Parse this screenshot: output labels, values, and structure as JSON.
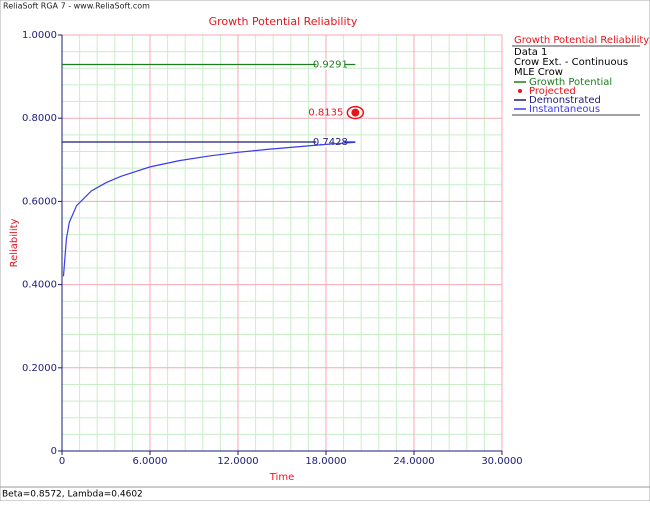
{
  "app_title": "ReliaSoft RGA 7 - www.ReliaSoft.com",
  "footer": "Beta=0.8572, Lambda=0.4602",
  "chart_data": {
    "type": "line",
    "title": "Growth Potential Reliability",
    "x_label": "Time",
    "y_label": "Reliability",
    "legend_title": "Growth Potential Reliability",
    "legend_lines": [
      "Data 1",
      "Crow Ext. - Continuous",
      "MLE Crow"
    ],
    "legend": "right",
    "grid": true,
    "xlim": [
      0,
      30
    ],
    "ylim": [
      0,
      1
    ],
    "xticks": [
      0,
      {
        "value": 6,
        "label": "6.0000"
      },
      {
        "value": 12,
        "label": "12.0000"
      },
      {
        "value": 18,
        "label": "18.0000"
      },
      {
        "value": 24,
        "label": "24.0000"
      },
      {
        "value": 30,
        "label": "30.0000"
      }
    ],
    "yticks": [
      {
        "value": 0,
        "label": "0"
      },
      {
        "value": 0.2,
        "label": "0.2000"
      },
      {
        "value": 0.4,
        "label": "0.4000"
      },
      {
        "value": 0.6,
        "label": "0.6000"
      },
      {
        "value": 0.8,
        "label": "0.8000"
      },
      {
        "value": 1,
        "label": "1.0000"
      }
    ],
    "series": [
      {
        "name": "Growth Potential",
        "color": "#1e7d1e",
        "x": [
          0,
          20
        ],
        "values": [
          0.9291,
          0.9291
        ],
        "label_last": true
      },
      {
        "name": "Projected",
        "color": "#e8141c",
        "marker": "dot",
        "x": [
          20
        ],
        "values": [
          0.8135
        ],
        "label_last": true
      },
      {
        "name": "Demonstrated",
        "color": "#1c1c78",
        "x": [
          0,
          20
        ],
        "values": [
          0.7428,
          0.7428
        ],
        "label_last": true
      },
      {
        "name": "Instantaneous",
        "color": "#3a3af0",
        "x": [
          0.1,
          0.3,
          0.5,
          1,
          2,
          3,
          4,
          6,
          8,
          10,
          12,
          14,
          16,
          18,
          20
        ],
        "values": [
          0.42,
          0.51,
          0.55,
          0.59,
          0.625,
          0.645,
          0.66,
          0.683,
          0.698,
          0.709,
          0.718,
          0.725,
          0.731,
          0.737,
          0.742
        ]
      }
    ]
  }
}
